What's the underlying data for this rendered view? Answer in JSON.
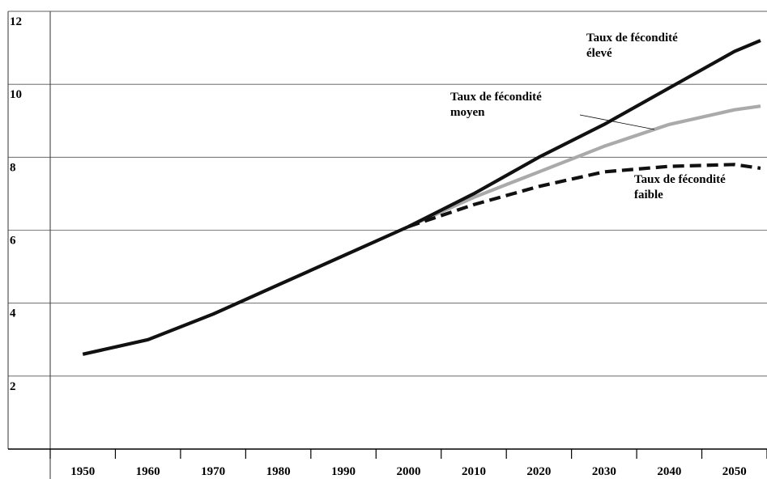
{
  "chart_data": {
    "type": "line",
    "title": "",
    "xlabel": "",
    "ylabel": "",
    "xlim": [
      1945,
      2055
    ],
    "ylim": [
      0,
      12
    ],
    "grid": "horizontal",
    "x_ticks": [
      1950,
      1960,
      1970,
      1980,
      1990,
      2000,
      2010,
      2020,
      2030,
      2040,
      2050
    ],
    "y_ticks": [
      2,
      4,
      6,
      8,
      10,
      12
    ],
    "series": [
      {
        "name": "Taux de fécondité élevé",
        "label_lines": [
          "Taux de fécondité",
          "élevé"
        ],
        "color": "#111111",
        "style": "solid",
        "x": [
          1950,
          1955,
          1960,
          1970,
          1980,
          1990,
          2000,
          2010,
          2020,
          2030,
          2040,
          2050,
          2054
        ],
        "y": [
          2.6,
          2.8,
          3.0,
          3.7,
          4.5,
          5.3,
          6.1,
          7.0,
          8.0,
          8.9,
          9.9,
          10.9,
          11.2
        ]
      },
      {
        "name": "Taux de fécondité moyen",
        "label_lines": [
          "Taux de fécondité",
          "moyen"
        ],
        "color": "#aaaaaa",
        "style": "solid",
        "x": [
          2000,
          2010,
          2020,
          2030,
          2040,
          2050,
          2054
        ],
        "y": [
          6.1,
          6.9,
          7.6,
          8.3,
          8.9,
          9.3,
          9.4
        ]
      },
      {
        "name": "Taux de fécondité faible",
        "label_lines": [
          "Taux de fécondité",
          "faible"
        ],
        "color": "#111111",
        "style": "dashed",
        "x": [
          2000,
          2010,
          2020,
          2030,
          2040,
          2050,
          2054
        ],
        "y": [
          6.1,
          6.7,
          7.2,
          7.6,
          7.75,
          7.8,
          7.7
        ]
      }
    ]
  }
}
